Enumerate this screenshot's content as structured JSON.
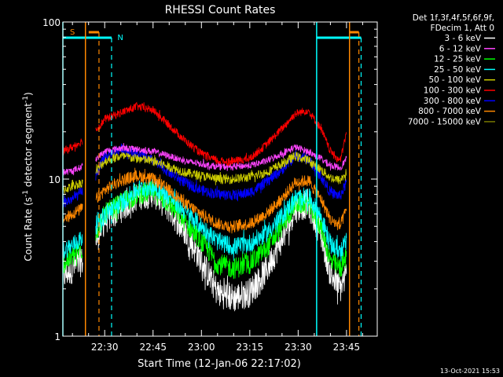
{
  "chart_data": {
    "type": "line",
    "title": "RHESSI Count Rates",
    "xlabel": "Start Time (12-Jan-06 22:17:02)",
    "ylabel_main": "Count Rate (s",
    "ylabel_sup1": "-1",
    "ylabel_mid": " detector segment",
    "ylabel_sup2": "-1",
    "ylabel_end": ")",
    "y_scale": "log",
    "ylim": [
      1,
      100
    ],
    "xlim_minutes": [
      0,
      97.5
    ],
    "x_ticks": [
      {
        "label": "22:30",
        "t": 12.97
      },
      {
        "label": "22:45",
        "t": 27.97
      },
      {
        "label": "23:00",
        "t": 42.97
      },
      {
        "label": "23:15",
        "t": 57.97
      },
      {
        "label": "23:30",
        "t": 72.97
      },
      {
        "label": "23:45",
        "t": 87.97
      }
    ],
    "y_tick_labels": [
      {
        "label": "100",
        "v": 100
      },
      {
        "label": "10",
        "v": 10
      },
      {
        "label": "1",
        "v": 1
      }
    ],
    "legend_header": [
      "Det 1f,3f,4f,5f,6f,9f,",
      "FDecim 1, Att 0"
    ],
    "series": [
      {
        "name": "3 - 6 keV",
        "color": "#ffffff",
        "t": [
          0,
          3,
          6,
          9,
          13,
          18,
          23,
          28,
          33,
          38,
          43,
          48,
          53,
          58,
          63,
          68,
          72,
          76,
          80,
          83,
          86,
          88
        ],
        "values": [
          2.4,
          2.7,
          3.0,
          3.5,
          5.5,
          6.5,
          7.8,
          8.2,
          6.5,
          4.6,
          3.0,
          1.9,
          1.75,
          1.9,
          2.6,
          4.2,
          6.5,
          7.0,
          4.5,
          2.5,
          2.0,
          2.5
        ]
      },
      {
        "name": "6 - 12 keV",
        "color": "#ff44ff",
        "t": [
          0,
          3,
          6,
          9,
          13,
          18,
          23,
          28,
          33,
          38,
          43,
          48,
          53,
          58,
          63,
          68,
          72,
          76,
          80,
          83,
          86,
          88
        ],
        "values": [
          11.0,
          11.3,
          12.0,
          12.8,
          15.0,
          15.8,
          15.5,
          15.0,
          14.0,
          13.0,
          12.5,
          12.0,
          12.0,
          12.2,
          13.0,
          14.5,
          16.0,
          15.0,
          13.5,
          12.2,
          11.8,
          13.5
        ]
      },
      {
        "name": "12 - 25 keV",
        "color": "#00ff00",
        "t": [
          0,
          3,
          6,
          9,
          13,
          18,
          23,
          28,
          33,
          38,
          43,
          48,
          53,
          58,
          63,
          68,
          72,
          76,
          80,
          83,
          86,
          88
        ],
        "values": [
          2.9,
          3.2,
          3.6,
          4.1,
          6.0,
          7.0,
          8.0,
          8.3,
          7.0,
          5.3,
          4.0,
          2.9,
          2.7,
          2.9,
          3.6,
          5.0,
          7.0,
          7.0,
          5.0,
          3.0,
          2.7,
          3.2
        ]
      },
      {
        "name": "25 - 50 keV",
        "color": "#00ffff",
        "t": [
          0,
          3,
          6,
          9,
          13,
          18,
          23,
          28,
          33,
          38,
          43,
          48,
          53,
          58,
          63,
          68,
          72,
          76,
          80,
          83,
          86,
          88
        ],
        "values": [
          3.5,
          3.8,
          4.2,
          4.7,
          6.0,
          7.0,
          8.6,
          9.0,
          7.8,
          6.2,
          5.0,
          4.0,
          3.7,
          3.9,
          4.5,
          5.8,
          7.5,
          7.8,
          5.8,
          3.8,
          3.5,
          4.0
        ]
      },
      {
        "name": "50 - 100 keV",
        "color": "#cccc00",
        "t": [
          0,
          3,
          6,
          9,
          13,
          18,
          23,
          28,
          33,
          38,
          43,
          48,
          53,
          58,
          63,
          68,
          72,
          76,
          80,
          83,
          86,
          88
        ],
        "values": [
          8.5,
          9.0,
          9.5,
          10.5,
          13.0,
          14.0,
          13.5,
          13.0,
          12.0,
          11.0,
          10.5,
          10.0,
          10.0,
          10.3,
          11.0,
          12.5,
          14.0,
          13.2,
          11.5,
          10.2,
          9.8,
          11.0
        ]
      },
      {
        "name": "100 - 300 keV",
        "color": "#ff0000",
        "t": [
          0,
          3,
          6,
          9,
          13,
          18,
          23,
          28,
          33,
          38,
          43,
          48,
          53,
          58,
          63,
          68,
          72,
          76,
          80,
          83,
          86,
          88
        ],
        "values": [
          15.0,
          16.0,
          17.5,
          19.0,
          24.0,
          26.5,
          29.0,
          27.5,
          22.0,
          17.5,
          14.5,
          13.0,
          13.0,
          13.5,
          16.5,
          21.0,
          26.0,
          27.5,
          21.0,
          15.0,
          13.0,
          20.0
        ]
      },
      {
        "name": "300 - 800 keV",
        "color": "#0000ff",
        "t": [
          0,
          3,
          6,
          9,
          13,
          18,
          23,
          28,
          33,
          38,
          43,
          48,
          53,
          58,
          63,
          68,
          72,
          76,
          80,
          83,
          86,
          88
        ],
        "values": [
          7.0,
          7.5,
          8.3,
          9.2,
          14.0,
          15.5,
          14.5,
          13.0,
          11.0,
          9.5,
          8.5,
          8.0,
          7.9,
          8.2,
          9.5,
          11.5,
          14.0,
          13.5,
          10.5,
          8.2,
          7.8,
          9.5
        ]
      },
      {
        "name": "800 - 7000 keV",
        "color": "#ff8800",
        "t": [
          0,
          3,
          6,
          9,
          13,
          18,
          23,
          28,
          33,
          38,
          43,
          48,
          53,
          58,
          63,
          68,
          72,
          76,
          80,
          83,
          86,
          88
        ],
        "values": [
          5.5,
          6.0,
          6.5,
          7.0,
          8.5,
          9.8,
          10.5,
          10.0,
          8.5,
          7.0,
          6.0,
          5.2,
          5.0,
          5.2,
          6.0,
          7.5,
          9.5,
          9.8,
          7.5,
          5.5,
          5.0,
          6.5
        ]
      },
      {
        "name": "7000 - 15000 keV",
        "color": "#777700",
        "t": [],
        "values": []
      }
    ],
    "markers": [
      {
        "label": "S",
        "color": "#ff8800"
      },
      {
        "label": "N",
        "color": "#00ffff"
      }
    ],
    "timestamp": "13-Oct-2021 15:53"
  }
}
